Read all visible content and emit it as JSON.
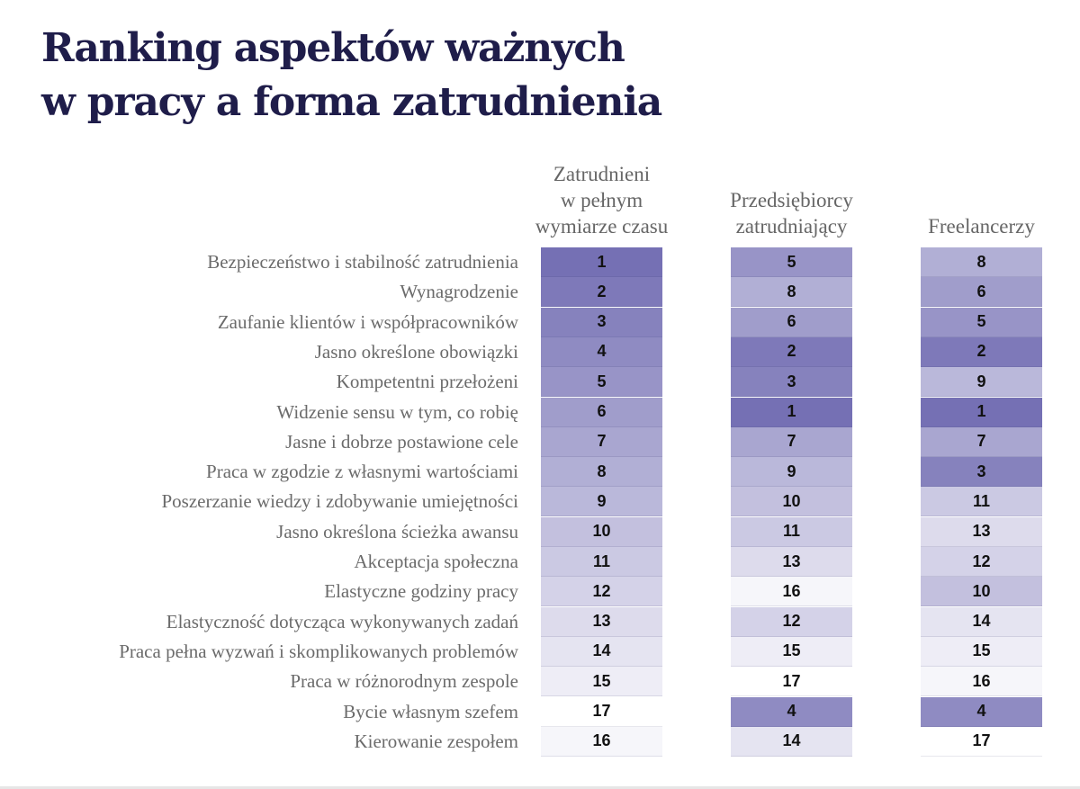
{
  "title": {
    "line1": "Ranking aspektów ważnych",
    "line2": "w pracy a forma zatrudnienia"
  },
  "colors": {
    "title": "#1f1d4a",
    "scale_top_rank": "#7570b4",
    "scale_bottom_rank": "#ffffff",
    "label_text": "#6b6b6b",
    "value_text": "#111111"
  },
  "chart_data": {
    "type": "table",
    "title": "Ranking aspektów ważnych w pracy a forma zatrudnienia",
    "value_kind": "rank (1 = most important)",
    "rank_range": [
      1,
      17
    ],
    "columns": [
      {
        "id": "fulltime",
        "header_lines": [
          "Zatrudnieni",
          "w pełnym",
          "wymiarze czasu"
        ]
      },
      {
        "id": "entrepreneurs",
        "header_lines": [
          "Przedsiębiorcy",
          "zatrudniający"
        ]
      },
      {
        "id": "freelancers",
        "header_lines": [
          "Freelancerzy"
        ]
      }
    ],
    "rows": [
      {
        "label": "Bezpieczeństwo i stabilność zatrudnienia",
        "values": [
          1,
          5,
          8
        ]
      },
      {
        "label": "Wynagrodzenie",
        "values": [
          2,
          8,
          6
        ]
      },
      {
        "label": "Zaufanie klientów i współpracowników",
        "values": [
          3,
          6,
          5
        ]
      },
      {
        "label": "Jasno określone obowiązki",
        "values": [
          4,
          2,
          2
        ]
      },
      {
        "label": "Kompetentni przełożeni",
        "values": [
          5,
          3,
          9
        ]
      },
      {
        "label": "Widzenie sensu w tym, co robię",
        "values": [
          6,
          1,
          1
        ]
      },
      {
        "label": "Jasne i dobrze postawione cele",
        "values": [
          7,
          7,
          7
        ]
      },
      {
        "label": "Praca w zgodzie z własnymi wartościami",
        "values": [
          8,
          9,
          3
        ]
      },
      {
        "label": "Poszerzanie wiedzy i zdobywanie umiejętności",
        "values": [
          9,
          10,
          11
        ]
      },
      {
        "label": "Jasno określona ścieżka awansu",
        "values": [
          10,
          11,
          13
        ]
      },
      {
        "label": "Akceptacja społeczna",
        "values": [
          11,
          13,
          12
        ]
      },
      {
        "label": "Elastyczne godziny pracy",
        "values": [
          12,
          16,
          10
        ]
      },
      {
        "label": "Elastyczność dotycząca wykonywanych zadań",
        "values": [
          13,
          12,
          14
        ]
      },
      {
        "label": "Praca pełna wyzwań i skomplikowanych problemów",
        "values": [
          14,
          15,
          15
        ]
      },
      {
        "label": "Praca w różnorodnym zespole",
        "values": [
          15,
          17,
          16
        ]
      },
      {
        "label": "Bycie własnym szefem",
        "values": [
          17,
          4,
          4
        ]
      },
      {
        "label": "Kierowanie zespołem",
        "values": [
          16,
          14,
          17
        ]
      }
    ]
  }
}
